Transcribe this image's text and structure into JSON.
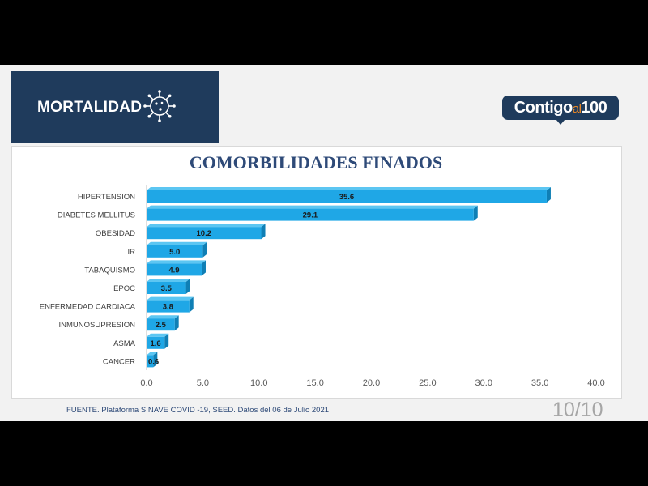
{
  "header": {
    "title": "MORTALIDAD",
    "icon": "virus-icon"
  },
  "logo": {
    "main": "Contigo",
    "accent": "al",
    "number": "100"
  },
  "footer": {
    "source": "FUENTE. Plataforma SINAVE COVID -19, SEED. Datos del 06 de Julio 2021",
    "page": "10/10"
  },
  "colors": {
    "bar": "#1fa7e6",
    "bar_dark": "#0f7fb5",
    "header": "#1f3b5c",
    "title": "#2e4a78"
  },
  "chart_data": {
    "type": "bar",
    "orientation": "horizontal",
    "title": "COMORBILIDADES FINADOS",
    "categories": [
      "HIPERTENSION",
      "DIABETES MELLITUS",
      "OBESIDAD",
      "IR",
      "TABAQUISMO",
      "EPOC",
      "ENFERMEDAD CARDIACA",
      "INMUNOSUPRESION",
      "ASMA",
      "CANCER"
    ],
    "values": [
      35.6,
      29.1,
      10.2,
      5.0,
      4.9,
      3.5,
      3.8,
      2.5,
      1.6,
      0.6
    ],
    "value_labels": [
      "35.6",
      "29.1",
      "10.2",
      "5.0",
      "4.9",
      "3.5",
      "3.8",
      "2.5",
      "1.6",
      "0.6"
    ],
    "xlim": [
      0,
      40
    ],
    "xticks": [
      "0.0",
      "5.0",
      "10.0",
      "15.0",
      "20.0",
      "25.0",
      "30.0",
      "35.0",
      "40.0"
    ],
    "grid": false
  }
}
